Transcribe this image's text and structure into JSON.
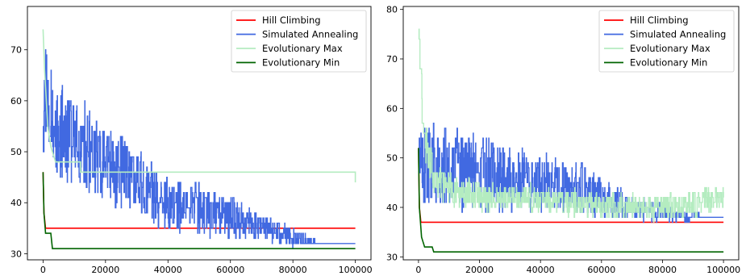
{
  "chart_data": [
    {
      "type": "line",
      "xlim": [
        -5000,
        105000
      ],
      "ylim": [
        28.8,
        78.5
      ],
      "xticks": [
        0,
        20000,
        40000,
        60000,
        80000,
        100000
      ],
      "yticks": [
        30,
        40,
        50,
        60,
        70
      ],
      "grid": false,
      "legend_position": "top-right",
      "series": [
        {
          "name": "Hill Climbing",
          "color": "#ff0000",
          "x": [
            0,
            300,
            800,
            100000
          ],
          "y": [
            46,
            38,
            35,
            35
          ]
        },
        {
          "name": "Simulated Annealing",
          "color": "#4169e1",
          "noisy": true,
          "seed": 11,
          "x": [
            0,
            1000,
            2000,
            5000,
            10000,
            20000,
            30000,
            40000,
            50000,
            60000,
            70000,
            80000,
            90000,
            100000
          ],
          "y": [
            60,
            63,
            58,
            54,
            52,
            48,
            44,
            40,
            39,
            37,
            35,
            33,
            32,
            32
          ],
          "spread": [
            14,
            13,
            12,
            11,
            10,
            9,
            8,
            6,
            6,
            5,
            3,
            2,
            0,
            0
          ],
          "noise_end": 88000
        },
        {
          "name": "Evolutionary Max",
          "color": "#b4ecc0",
          "x": [
            0,
            500,
            1500,
            2500,
            4000,
            12000,
            100000
          ],
          "y": [
            74,
            66,
            55,
            51,
            48,
            46,
            44
          ]
        },
        {
          "name": "Evolutionary Min",
          "color": "#006400",
          "x": [
            0,
            300,
            800,
            2500,
            3000,
            100000
          ],
          "y": [
            46,
            38,
            34,
            34,
            31,
            31
          ]
        }
      ]
    },
    {
      "type": "line",
      "xlim": [
        -5000,
        105000
      ],
      "ylim": [
        29.4,
        80.6
      ],
      "xticks": [
        0,
        20000,
        40000,
        60000,
        80000,
        100000
      ],
      "yticks": [
        30,
        40,
        50,
        60,
        70,
        80
      ],
      "grid": false,
      "legend_position": "top-right",
      "series": [
        {
          "name": "Hill Climbing",
          "color": "#ff0000",
          "x": [
            0,
            300,
            800,
            100000
          ],
          "y": [
            52,
            40,
            37,
            37
          ]
        },
        {
          "name": "Simulated Annealing",
          "color": "#4169e1",
          "noisy": true,
          "seed": 23,
          "x": [
            0,
            2000,
            5000,
            10000,
            20000,
            30000,
            40000,
            50000,
            60000,
            70000,
            80000,
            90000,
            100000
          ],
          "y": [
            50,
            49,
            48,
            48,
            47,
            46,
            45,
            44,
            42,
            40,
            39,
            38,
            38
          ],
          "spread": [
            8,
            9,
            10,
            10,
            9,
            8,
            7,
            6,
            5,
            3,
            2,
            1,
            0
          ],
          "noise_end": 92000
        },
        {
          "name": "Evolutionary Max",
          "color": "#b4ecc0",
          "noisy": true,
          "seed": 57,
          "x": [
            0,
            500,
            1500,
            3000,
            6000,
            15000,
            30000,
            50000,
            70000,
            80000,
            90000,
            100000
          ],
          "y": [
            75,
            68,
            58,
            50,
            45,
            43,
            42,
            41,
            40,
            40,
            41,
            42
          ],
          "spread": [
            4,
            5,
            6,
            5,
            4,
            4,
            3,
            3,
            3,
            3,
            3,
            3
          ],
          "noise_end": 100000
        },
        {
          "name": "Evolutionary Min",
          "color": "#006400",
          "x": [
            0,
            300,
            1000,
            2000,
            4500,
            5000,
            100000
          ],
          "y": [
            52,
            40,
            34,
            32,
            32,
            31,
            31
          ]
        }
      ]
    }
  ]
}
